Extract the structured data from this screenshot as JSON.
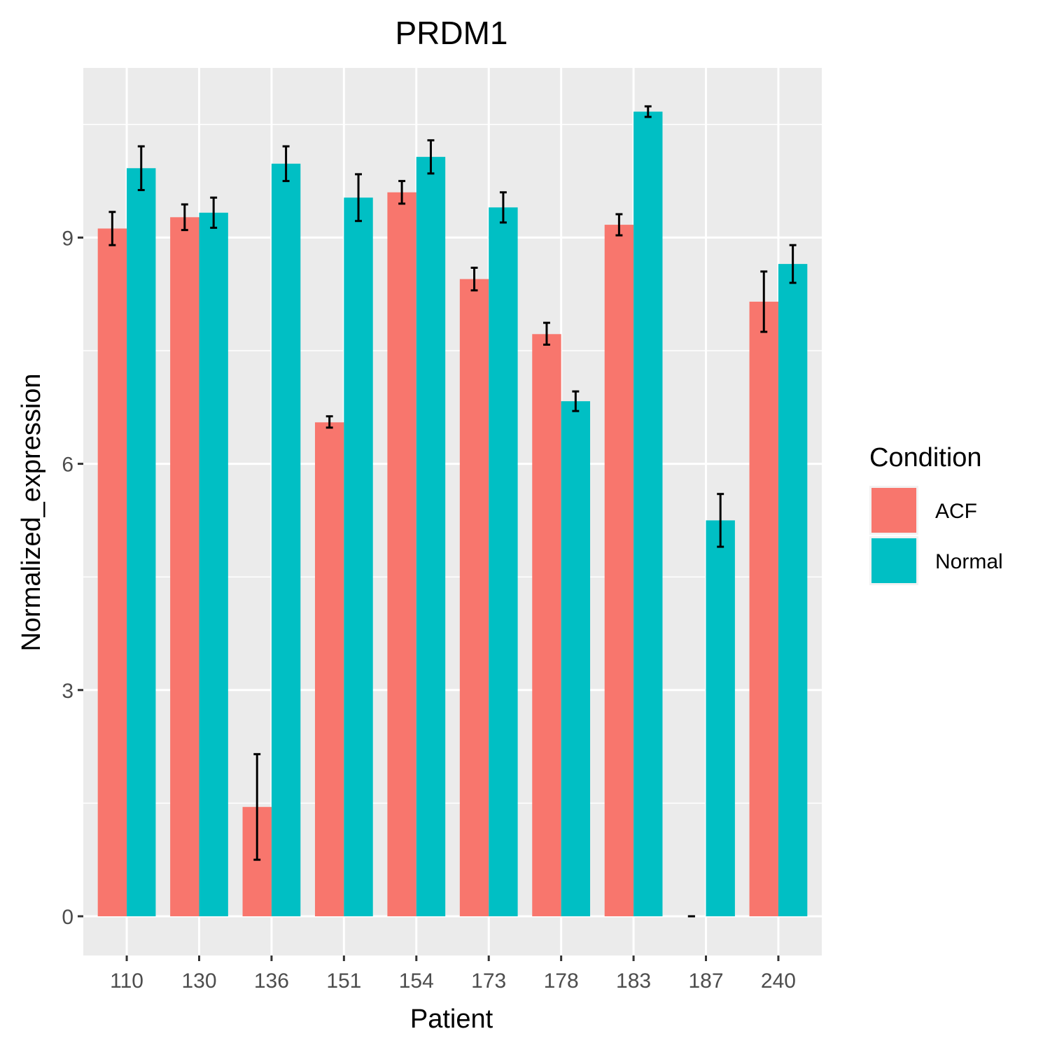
{
  "chart_data": {
    "type": "bar",
    "title": "PRDM1",
    "xlabel": "Patient",
    "ylabel": "Normalized_expression",
    "categories": [
      "110",
      "130",
      "136",
      "151",
      "154",
      "173",
      "178",
      "183",
      "187",
      "240"
    ],
    "series": [
      {
        "name": "ACF",
        "color": "#F8766D",
        "values": [
          9.12,
          9.27,
          1.45,
          6.55,
          9.6,
          8.45,
          7.72,
          9.17,
          0.0,
          8.15
        ],
        "error_low": [
          8.9,
          9.1,
          0.75,
          6.48,
          9.45,
          8.3,
          7.58,
          9.03,
          0.0,
          7.75
        ],
        "error_high": [
          9.34,
          9.44,
          2.15,
          6.63,
          9.75,
          8.6,
          7.87,
          9.31,
          0.0,
          8.55
        ]
      },
      {
        "name": "Normal",
        "color": "#00BFC4",
        "values": [
          9.92,
          9.33,
          9.98,
          9.53,
          10.07,
          9.4,
          6.83,
          10.67,
          5.25,
          8.65
        ],
        "error_low": [
          9.63,
          9.13,
          9.75,
          9.22,
          9.85,
          9.2,
          6.7,
          10.6,
          4.9,
          8.4
        ],
        "error_high": [
          10.21,
          9.53,
          10.21,
          9.84,
          10.29,
          9.6,
          6.96,
          10.74,
          5.6,
          8.9
        ]
      }
    ],
    "yticks": [
      0,
      3,
      6,
      9
    ],
    "ylim": [
      -0.52,
      11.25
    ],
    "grid": true,
    "legend": {
      "title": "Condition",
      "position": "right",
      "entries": [
        "ACF",
        "Normal"
      ]
    }
  }
}
